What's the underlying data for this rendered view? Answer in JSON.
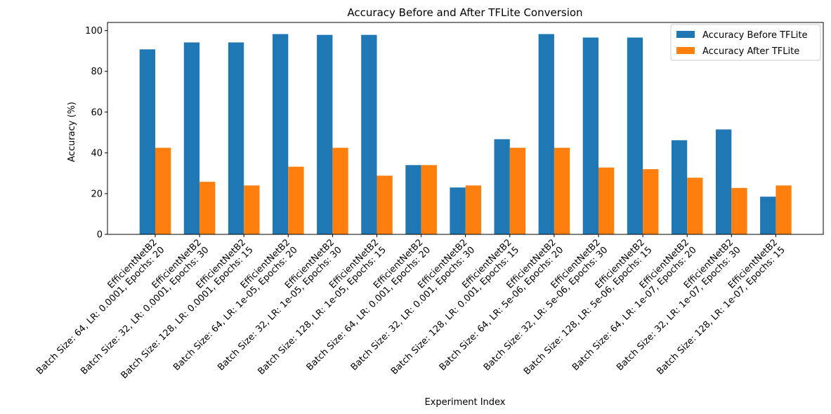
{
  "chart_data": {
    "type": "bar",
    "title": "Accuracy Before and After TFLite Conversion",
    "xlabel": "Experiment Index",
    "ylabel": "Accuracy (%)",
    "ylim": [
      0,
      104
    ],
    "yticks": [
      0,
      20,
      40,
      60,
      80,
      100
    ],
    "grid": false,
    "legend_position": "top-right",
    "categories": [
      [
        "EfficientNetB2",
        "Batch Size: 64, LR: 0.0001, Epochs: 20"
      ],
      [
        "EfficientNetB2",
        "Batch Size: 32, LR: 0.0001, Epochs: 30"
      ],
      [
        "EfficientNetB2",
        "Batch Size: 128, LR: 0.0001, Epochs: 15"
      ],
      [
        "EfficientNetB2",
        "Batch Size: 64, LR: 1e-05, Epochs: 20"
      ],
      [
        "EfficientNetB2",
        "Batch Size: 32, LR: 1e-05, Epochs: 30"
      ],
      [
        "EfficientNetB2",
        "Batch Size: 128, LR: 1e-05, Epochs: 15"
      ],
      [
        "EfficientNetB2",
        "Batch Size: 64, LR: 0.001, Epochs: 20"
      ],
      [
        "EfficientNetB2",
        "Batch Size: 32, LR: 0.001, Epochs: 30"
      ],
      [
        "EfficientNetB2",
        "Batch Size: 128, LR: 0.001, Epochs: 15"
      ],
      [
        "EfficientNetB2",
        "Batch Size: 64, LR: 5e-06, Epochs: 20"
      ],
      [
        "EfficientNetB2",
        "Batch Size: 32, LR: 5e-06, Epochs: 30"
      ],
      [
        "EfficientNetB2",
        "Batch Size: 128, LR: 5e-06, Epochs: 15"
      ],
      [
        "EfficientNetB2",
        "Batch Size: 64, LR: 1e-07, Epochs: 20"
      ],
      [
        "EfficientNetB2",
        "Batch Size: 32, LR: 1e-07, Epochs: 30"
      ],
      [
        "EfficientNetB2",
        "Batch Size: 128, LR: 1e-07, Epochs: 15"
      ]
    ],
    "series": [
      {
        "name": "Accuracy Before TFLite",
        "color": "#1f77b4",
        "values": [
          90.8,
          94.2,
          94.2,
          98.3,
          97.9,
          97.9,
          34.0,
          23.0,
          46.7,
          98.3,
          96.6,
          96.6,
          46.2,
          51.5,
          18.5
        ]
      },
      {
        "name": "Accuracy After TFLite",
        "color": "#ff7f0e",
        "values": [
          42.5,
          25.8,
          24.0,
          33.2,
          42.5,
          28.8,
          34.0,
          24.0,
          42.5,
          42.5,
          32.8,
          32.0,
          27.8,
          22.8,
          24.0
        ]
      }
    ]
  }
}
